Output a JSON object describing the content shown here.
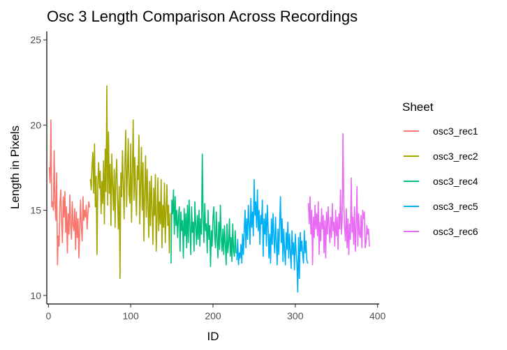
{
  "chart_data": {
    "type": "line",
    "title": "Osc 3 Length Comparison Across Recordings",
    "xlabel": "ID",
    "ylabel": "Length in Pixels",
    "xlim": [
      -2,
      402
    ],
    "ylim": [
      9.5,
      25.5
    ],
    "x_ticks": [
      0,
      100,
      200,
      300,
      400
    ],
    "y_ticks": [
      10,
      15,
      20,
      25
    ],
    "grid": false,
    "legend": {
      "title": "Sheet",
      "position": "right"
    },
    "series": [
      {
        "name": "osc3_rec1",
        "color": "#F8766D",
        "x": [
          1,
          2,
          3,
          4,
          5,
          6,
          7,
          8,
          9,
          10,
          11,
          12,
          13,
          14,
          15,
          16,
          17,
          18,
          19,
          20,
          21,
          22,
          23,
          24,
          25,
          26,
          27,
          28,
          29,
          30,
          31,
          32,
          33,
          34,
          35,
          36,
          37,
          38,
          39,
          40,
          41,
          42,
          43,
          44,
          45,
          46,
          47,
          48,
          49,
          50
        ],
        "y": [
          17.5,
          16.6,
          20.3,
          15.2,
          15.5,
          15.0,
          18.5,
          15.3,
          14.4,
          17.2,
          11.8,
          13.5,
          12.9,
          15.4,
          16.2,
          14.3,
          13.1,
          15.8,
          14.6,
          16.1,
          13.7,
          15.2,
          12.5,
          14.8,
          13.6,
          15.9,
          14.2,
          13.3,
          15.5,
          14.1,
          13.8,
          15.1,
          12.7,
          14.9,
          13.4,
          14.5,
          12.2,
          13.9,
          15.6,
          14.0,
          13.2,
          15.8,
          14.4,
          15.0,
          14.6,
          15.3,
          13.9,
          14.8,
          15.5,
          15.2
        ]
      },
      {
        "name": "osc3_rec2",
        "color": "#A3A500",
        "x": [
          51,
          52,
          53,
          54,
          55,
          56,
          57,
          58,
          59,
          60,
          61,
          62,
          63,
          64,
          65,
          66,
          67,
          68,
          69,
          70,
          71,
          72,
          73,
          74,
          75,
          76,
          77,
          78,
          79,
          80,
          81,
          82,
          83,
          84,
          85,
          86,
          87,
          88,
          89,
          90,
          91,
          92,
          93,
          94,
          95,
          96,
          97,
          98,
          99,
          100,
          101,
          102,
          103,
          104,
          105,
          106,
          107,
          108,
          109,
          110,
          111,
          112,
          113,
          114,
          115,
          116,
          117,
          118,
          119,
          120,
          121,
          122,
          123,
          124,
          125,
          126,
          127,
          128,
          129,
          130,
          131,
          132,
          133,
          134,
          135,
          136,
          137,
          138,
          139,
          140,
          141,
          142,
          143,
          144,
          145,
          146,
          147,
          148
        ],
        "y": [
          16.8,
          16.2,
          17.6,
          18.4,
          16.0,
          18.9,
          15.2,
          17.0,
          12.4,
          16.5,
          17.8,
          16.3,
          17.3,
          14.8,
          16.7,
          15.4,
          17.9,
          14.2,
          18.6,
          16.1,
          22.3,
          15.3,
          19.6,
          16.0,
          17.7,
          14.1,
          18.3,
          16.5,
          15.0,
          17.4,
          14.0,
          16.9,
          18.0,
          15.6,
          13.9,
          16.4,
          11.0,
          17.2,
          15.8,
          18.5,
          16.6,
          14.5,
          17.8,
          19.7,
          15.2,
          17.3,
          19.2,
          16.0,
          15.4,
          18.9,
          14.3,
          17.1,
          20.3,
          15.6,
          18.1,
          16.2,
          14.7,
          17.6,
          16.8,
          19.4,
          14.2,
          16.5,
          18.7,
          15.0,
          17.8,
          13.2,
          16.0,
          18.2,
          14.6,
          17.4,
          15.3,
          13.4,
          16.7,
          14.1,
          17.0,
          15.1,
          13.0,
          16.3,
          14.7,
          17.1,
          12.6,
          14.6,
          16.9,
          13.8,
          15.5,
          14.2,
          16.8,
          12.8,
          15.3,
          14.0,
          16.6,
          13.1,
          15.0,
          16.5,
          14.1,
          15.3,
          12.5,
          14.8
        ]
      },
      {
        "name": "osc3_rec4",
        "color": "#00BF7D",
        "x": [
          149,
          150,
          151,
          152,
          153,
          154,
          155,
          156,
          157,
          158,
          159,
          160,
          161,
          162,
          163,
          164,
          165,
          166,
          167,
          168,
          169,
          170,
          171,
          172,
          173,
          174,
          175,
          176,
          177,
          178,
          179,
          180,
          181,
          182,
          183,
          184,
          185,
          186,
          187,
          188,
          189,
          190,
          191,
          192,
          193,
          194,
          195,
          196,
          197,
          198,
          199,
          200,
          201,
          202,
          203,
          204,
          205,
          206,
          207,
          208,
          209,
          210,
          211,
          212,
          213,
          214,
          215,
          216,
          217,
          218,
          219,
          220,
          221,
          222,
          223,
          224,
          225,
          226,
          227,
          228
        ],
        "y": [
          11.9,
          15.6,
          14.8,
          16.2,
          13.6,
          15.8,
          14.1,
          15.0,
          13.4,
          14.6,
          15.2,
          12.6,
          14.9,
          13.8,
          14.4,
          12.2,
          15.1,
          13.5,
          14.8,
          12.8,
          15.3,
          13.1,
          15.6,
          14.0,
          12.4,
          15.2,
          13.7,
          14.3,
          12.6,
          15.5,
          14.1,
          13.0,
          14.7,
          13.3,
          15.0,
          12.9,
          14.5,
          13.6,
          18.3,
          14.6,
          13.1,
          15.4,
          13.8,
          14.2,
          12.5,
          15.0,
          13.3,
          14.1,
          11.7,
          13.8,
          12.9,
          14.6,
          15.2,
          13.5,
          12.8,
          14.9,
          13.2,
          12.2,
          14.3,
          12.7,
          15.3,
          13.4,
          12.6,
          13.9,
          12.4,
          14.1,
          13.0,
          11.8,
          14.2,
          12.5,
          13.1,
          14.5,
          12.3,
          13.4,
          12.0,
          14.2,
          12.6,
          12.3,
          13.8,
          12.5
        ]
      },
      {
        "name": "osc3_rec5",
        "color": "#00B0F6",
        "x": [
          229,
          230,
          231,
          232,
          233,
          234,
          235,
          236,
          237,
          238,
          239,
          240,
          241,
          242,
          243,
          244,
          245,
          246,
          247,
          248,
          249,
          250,
          251,
          252,
          253,
          254,
          255,
          256,
          257,
          258,
          259,
          260,
          261,
          262,
          263,
          264,
          265,
          266,
          267,
          268,
          269,
          270,
          271,
          272,
          273,
          274,
          275,
          276,
          277,
          278,
          279,
          280,
          281,
          282,
          283,
          284,
          285,
          286,
          287,
          288,
          289,
          290,
          291,
          292,
          293,
          294,
          295,
          296,
          297,
          298,
          299,
          300,
          301,
          302,
          303,
          304,
          305,
          306,
          307,
          308,
          309,
          310,
          311,
          312,
          313,
          314,
          315
        ],
        "y": [
          12.1,
          13.3,
          11.8,
          12.5,
          12.2,
          13.0,
          11.9,
          13.6,
          12.4,
          13.9,
          15.0,
          12.8,
          14.5,
          13.3,
          15.3,
          14.2,
          13.0,
          15.7,
          14.0,
          14.9,
          13.5,
          16.8,
          14.7,
          15.5,
          14.0,
          16.2,
          13.8,
          15.0,
          13.0,
          14.7,
          14.2,
          15.6,
          12.3,
          14.5,
          13.6,
          14.8,
          12.9,
          15.3,
          14.0,
          12.2,
          13.6,
          11.9,
          14.5,
          13.0,
          14.8,
          13.4,
          12.5,
          14.6,
          13.1,
          11.8,
          13.9,
          12.4,
          14.2,
          15.8,
          13.1,
          14.5,
          12.0,
          13.9,
          12.6,
          11.8,
          13.7,
          12.7,
          14.3,
          12.2,
          13.6,
          12.5,
          11.6,
          13.8,
          12.4,
          13.1,
          11.5,
          13.6,
          12.6,
          11.9,
          10.2,
          13.4,
          11.0,
          13.7,
          12.6,
          13.2,
          12.4,
          11.9,
          13.8,
          12.5,
          13.2,
          12.1,
          11.9
        ]
      },
      {
        "name": "osc3_rec6",
        "color": "#E76BF3",
        "x": [
          316,
          317,
          318,
          319,
          320,
          321,
          322,
          323,
          324,
          325,
          326,
          327,
          328,
          329,
          330,
          331,
          332,
          333,
          334,
          335,
          336,
          337,
          338,
          339,
          340,
          341,
          342,
          343,
          344,
          345,
          346,
          347,
          348,
          349,
          350,
          351,
          352,
          353,
          354,
          355,
          356,
          357,
          358,
          359,
          360,
          361,
          362,
          363,
          364,
          365,
          366,
          367,
          368,
          369,
          370,
          371,
          372,
          373,
          374,
          375,
          376,
          377,
          378,
          379,
          380,
          381,
          382,
          383,
          384,
          385,
          386,
          387,
          388,
          389,
          390
        ],
        "y": [
          15.4,
          14.2,
          15.8,
          13.6,
          15.0,
          11.8,
          14.6,
          13.4,
          15.3,
          13.9,
          14.8,
          13.5,
          15.5,
          12.4,
          14.3,
          13.2,
          15.1,
          13.9,
          14.7,
          12.5,
          14.4,
          12.2,
          14.9,
          13.6,
          15.2,
          14.0,
          13.1,
          14.6,
          13.4,
          15.4,
          13.8,
          14.3,
          12.9,
          15.0,
          13.5,
          14.6,
          12.7,
          14.8,
          13.9,
          16.2,
          13.6,
          14.4,
          19.5,
          15.3,
          14.0,
          13.2,
          15.1,
          12.8,
          14.5,
          12.4,
          14.2,
          13.3,
          16.9,
          13.7,
          14.6,
          13.0,
          15.2,
          12.6,
          14.0,
          16.4,
          12.9,
          14.8,
          13.6,
          13.4,
          14.7,
          12.8,
          15.0,
          14.5,
          14.9,
          12.8,
          13.1,
          14.1,
          13.6,
          13.9,
          12.9
        ]
      }
    ]
  }
}
